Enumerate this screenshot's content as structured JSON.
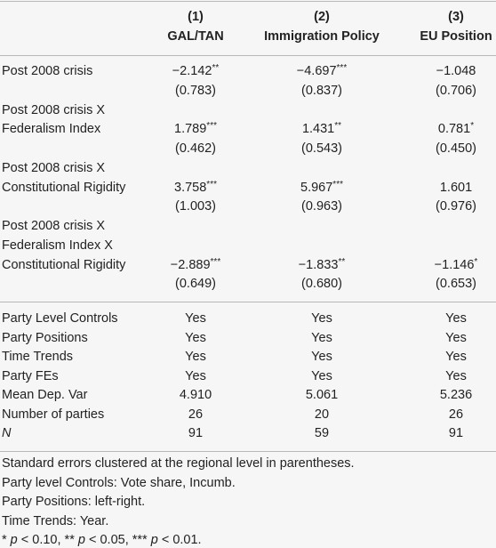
{
  "header": {
    "columns": [
      {
        "number": "(1)",
        "name": "GAL/TAN"
      },
      {
        "number": "(2)",
        "name": "Immigration Policy"
      },
      {
        "number": "(3)",
        "name": "EU Position"
      }
    ]
  },
  "coefficients": [
    {
      "label_lines": [
        "Post 2008 crisis"
      ],
      "coef": [
        {
          "value": "−2.142",
          "stars": "**"
        },
        {
          "value": "−4.697",
          "stars": "***"
        },
        {
          "value": "−1.048",
          "stars": ""
        }
      ],
      "se": [
        "(0.783)",
        "(0.837)",
        "(0.706)"
      ]
    },
    {
      "label_lines": [
        "Post 2008 crisis X",
        "Federalism Index"
      ],
      "coef": [
        {
          "value": "1.789",
          "stars": "***"
        },
        {
          "value": "1.431",
          "stars": "**"
        },
        {
          "value": "0.781",
          "stars": "*"
        }
      ],
      "se": [
        "(0.462)",
        "(0.543)",
        "(0.450)"
      ]
    },
    {
      "label_lines": [
        "Post 2008 crisis X",
        "Constitutional Rigidity"
      ],
      "coef": [
        {
          "value": "3.758",
          "stars": "***"
        },
        {
          "value": "5.967",
          "stars": "***"
        },
        {
          "value": "1.601",
          "stars": ""
        }
      ],
      "se": [
        "(1.003)",
        "(0.963)",
        "(0.976)"
      ]
    },
    {
      "label_lines": [
        "Post 2008 crisis X",
        "Federalism Index X",
        "Constitutional Rigidity"
      ],
      "coef": [
        {
          "value": "−2.889",
          "stars": "***"
        },
        {
          "value": "−1.833",
          "stars": "**"
        },
        {
          "value": "−1.146",
          "stars": "*"
        }
      ],
      "se": [
        "(0.649)",
        "(0.680)",
        "(0.653)"
      ]
    }
  ],
  "controls": [
    {
      "label": "Party Level Controls",
      "cells": [
        "Yes",
        "Yes",
        "Yes"
      ]
    },
    {
      "label": "Party Positions",
      "cells": [
        "Yes",
        "Yes",
        "Yes"
      ]
    },
    {
      "label": "Time Trends",
      "cells": [
        "Yes",
        "Yes",
        "Yes"
      ]
    },
    {
      "label": "Party FEs",
      "cells": [
        "Yes",
        "Yes",
        "Yes"
      ]
    },
    {
      "label": "Mean Dep. Var",
      "cells": [
        "4.910",
        "5.061",
        "5.236"
      ]
    },
    {
      "label": "Number of parties",
      "cells": [
        "26",
        "20",
        "26"
      ]
    },
    {
      "label": "N",
      "italic": true,
      "cells": [
        "91",
        "59",
        "91"
      ]
    }
  ],
  "notes": [
    "Standard errors clustered at the regional level in parentheses.",
    "Party level Controls: Vote share, Incumb.",
    "Party Positions: left-right.",
    "Time Trends: Year."
  ],
  "significance_note": [
    {
      "text": "* ",
      "italic": false
    },
    {
      "text": "p",
      "italic": true
    },
    {
      "text": " < 0.10, ** ",
      "italic": false
    },
    {
      "text": "p",
      "italic": true
    },
    {
      "text": " < 0.05, *** ",
      "italic": false
    },
    {
      "text": "p",
      "italic": true
    },
    {
      "text": " < 0.01.",
      "italic": false
    }
  ]
}
